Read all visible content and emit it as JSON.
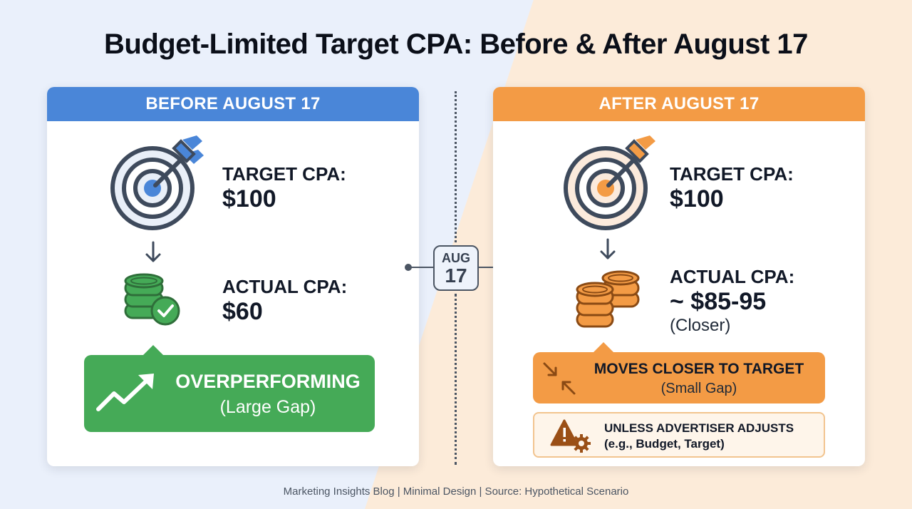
{
  "title": "Budget-Limited Target CPA: Before & After August 17",
  "divider": {
    "month": "AUG",
    "day": "17"
  },
  "before": {
    "header": "BEFORE AUGUST 17",
    "target_label": "TARGET CPA:",
    "target_value": "$100",
    "actual_label": "ACTUAL CPA:",
    "actual_value": "$60",
    "status_title": "OVERPERFORMING",
    "status_sub": "(Large Gap)"
  },
  "after": {
    "header": "AFTER AUGUST 17",
    "target_label": "TARGET CPA:",
    "target_value": "$100",
    "actual_label": "ACTUAL CPA:",
    "actual_value": "~ $85-95",
    "actual_note": "(Closer)",
    "status_title": "MOVES CLOSER TO TARGET",
    "status_sub": "(Small Gap)",
    "warning_line1": "UNLESS ADVERTISER ADJUSTS",
    "warning_line2": "(e.g., Budget, Target)"
  },
  "footer": "Marketing Insights Blog | Minimal Design | Source: Hypothetical Scenario",
  "icons": {
    "before": [
      "target-arrow-icon",
      "down-arrow-icon",
      "coins-check-icon",
      "trend-up-icon"
    ],
    "after": [
      "target-arrow-icon",
      "down-arrow-icon",
      "coins-stack-icon",
      "compress-arrows-icon",
      "warning-gear-icon"
    ]
  },
  "colors": {
    "before_accent": "#4a86d8",
    "after_accent": "#f39b45",
    "overperforming": "#45aa57",
    "before_background": "#eaf0fb",
    "after_background": "#fcebd9"
  }
}
